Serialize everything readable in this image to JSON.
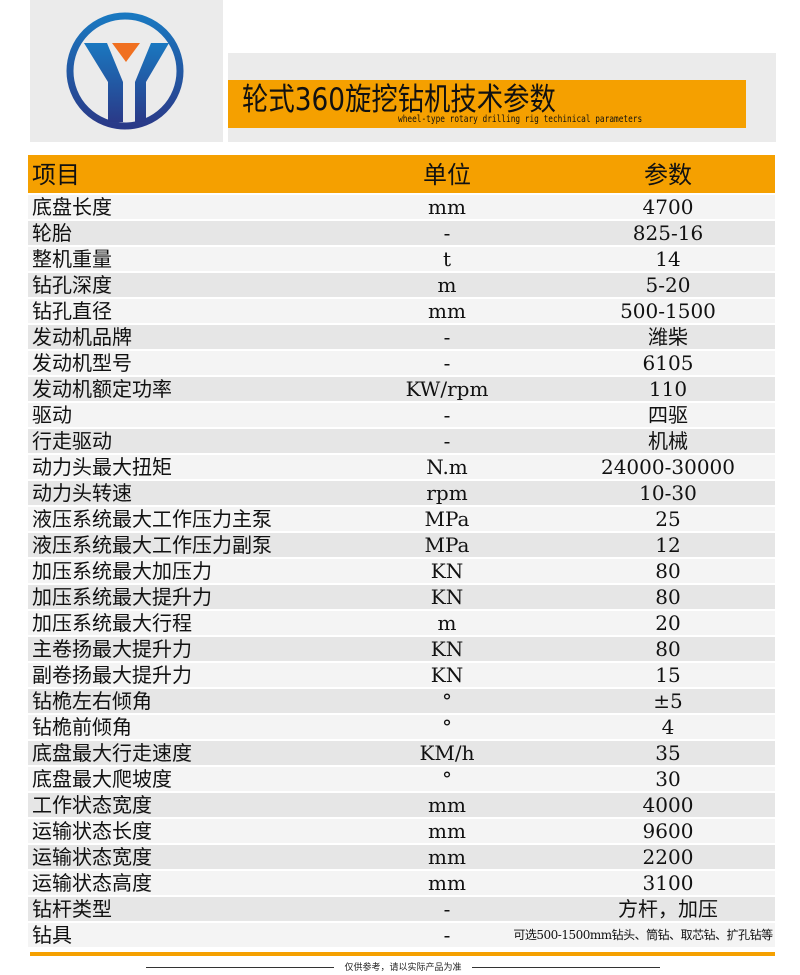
{
  "header": {
    "title": "轮式360旋挖钻机技术参数",
    "subtitle": "wheel-type rotary drilling rig techinical parameters",
    "brand_colors": {
      "accent": "#f5a000",
      "logo_blue": "#2a4a9a",
      "logo_orange": "#f07020"
    }
  },
  "table": {
    "columns": [
      "项目",
      "单位",
      "参数"
    ],
    "rows": [
      [
        "底盘长度",
        "mm",
        "4700"
      ],
      [
        "轮胎",
        "-",
        "825-16"
      ],
      [
        "整机重量",
        "t",
        "14"
      ],
      [
        "钻孔深度",
        "m",
        "5-20"
      ],
      [
        "钻孔直径",
        "mm",
        "500-1500"
      ],
      [
        "发动机品牌",
        "-",
        "潍柴"
      ],
      [
        "发动机型号",
        "-",
        "6105"
      ],
      [
        "发动机额定功率",
        "KW/rpm",
        "110"
      ],
      [
        "驱动",
        "-",
        "四驱"
      ],
      [
        "行走驱动",
        "-",
        "机械"
      ],
      [
        "动力头最大扭矩",
        "N.m",
        "24000-30000"
      ],
      [
        "动力头转速",
        "rpm",
        "10-30"
      ],
      [
        "液压系统最大工作压力主泵",
        "MPa",
        "25"
      ],
      [
        "液压系统最大工作压力副泵",
        "MPa",
        "12"
      ],
      [
        "加压系统最大加压力",
        "KN",
        "80"
      ],
      [
        "加压系统最大提升力",
        "KN",
        "80"
      ],
      [
        "加压系统最大行程",
        "m",
        "20"
      ],
      [
        "主卷扬最大提升力",
        "KN",
        "80"
      ],
      [
        "副卷扬最大提升力",
        "KN",
        "15"
      ],
      [
        "钻桅左右倾角",
        "°",
        "±5"
      ],
      [
        "钻桅前倾角",
        "°",
        "4"
      ],
      [
        "底盘最大行走速度",
        "KM/h",
        "35"
      ],
      [
        "底盘最大爬坡度",
        "°",
        "30"
      ],
      [
        "工作状态宽度",
        "mm",
        "4000"
      ],
      [
        "运输状态长度",
        "mm",
        "9600"
      ],
      [
        "运输状态宽度",
        "mm",
        "2200"
      ],
      [
        "运输状态高度",
        "mm",
        "3100"
      ],
      [
        "钻杆类型",
        "-",
        "方杆，加压"
      ],
      [
        "钻具",
        "-",
        "可选500-1500mm钻头、筒钻、取芯钻、扩孔钻等"
      ]
    ]
  },
  "footer": {
    "note": "仅供参考，请以实际产品为准"
  }
}
